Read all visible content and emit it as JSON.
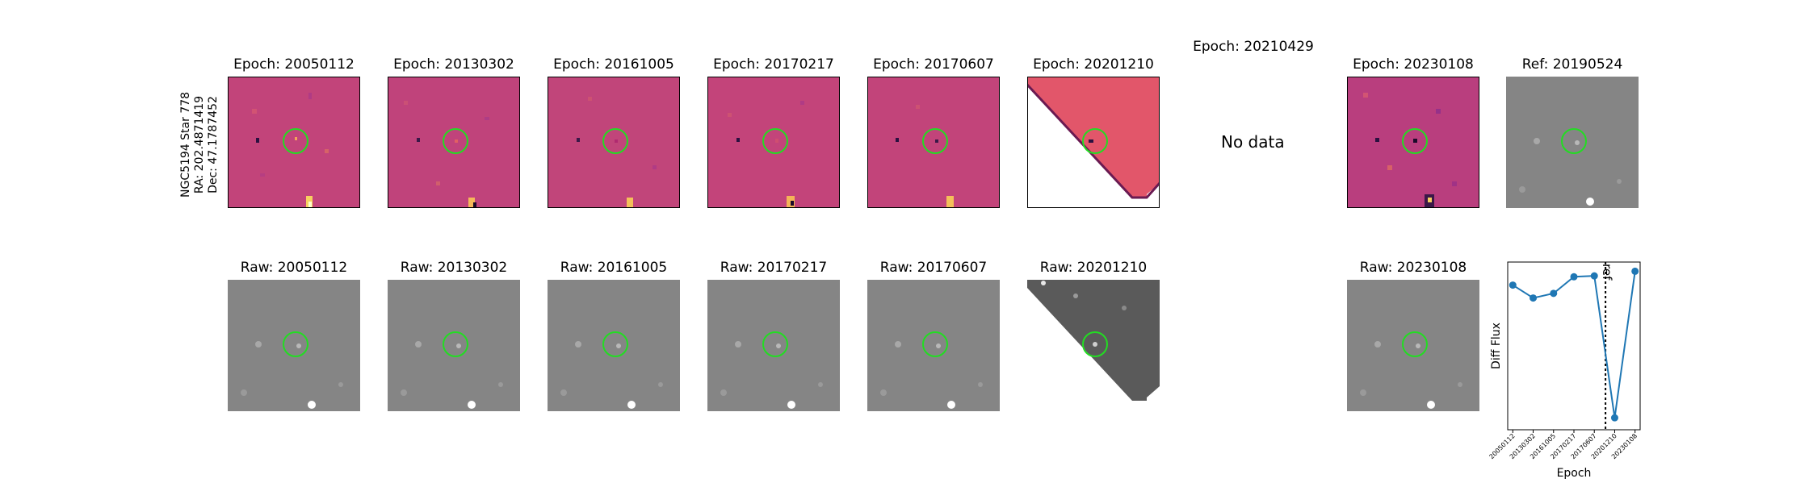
{
  "star": {
    "name": "NGC5194 Star 778",
    "ra": "RA: 202.4871419",
    "dec": "Dec: 47.1787452"
  },
  "colors": {
    "circle": "#22dd22",
    "diff_bg": "#c2447a",
    "raw_bg": "#858585",
    "line": "#1f77b4"
  },
  "epochs": [
    {
      "diff_title": "Epoch: 20050112",
      "raw_title": "Raw: 20050112",
      "coverage": "full"
    },
    {
      "diff_title": "Epoch: 20130302",
      "raw_title": "Raw: 20130302",
      "coverage": "full"
    },
    {
      "diff_title": "Epoch: 20161005",
      "raw_title": "Raw: 20161005",
      "coverage": "full"
    },
    {
      "diff_title": "Epoch: 20170217",
      "raw_title": "Raw: 20170217",
      "coverage": "full"
    },
    {
      "diff_title": "Epoch: 20170607",
      "raw_title": "Raw: 20170607",
      "coverage": "full"
    },
    {
      "diff_title": "Epoch: 20201210",
      "raw_title": "Raw: 20201210",
      "coverage": "partial"
    },
    {
      "diff_title": "Epoch: 20210429",
      "no_data": "No data"
    },
    {
      "diff_title": "Epoch: 20230108",
      "raw_title": "Raw: 20230108",
      "coverage": "full"
    }
  ],
  "reference": {
    "title": "Ref: 20190524"
  },
  "chart_data": {
    "type": "line",
    "xlabel": "Epoch",
    "ylabel": "Diff Flux",
    "categories": [
      "20050112",
      "20130302",
      "20161005",
      "20170217",
      "20170607",
      "20201210",
      "20230108"
    ],
    "values": [
      0.72,
      0.58,
      0.63,
      0.81,
      0.82,
      -0.72,
      0.87
    ],
    "ylim": [
      -0.85,
      0.97
    ],
    "annotation": {
      "label": "ref",
      "between": [
        "20170607",
        "20201210"
      ],
      "position": 4.55
    }
  }
}
